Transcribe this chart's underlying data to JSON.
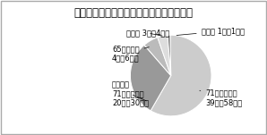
{
  "title": "図２－１　適切と考える再診料の統一方法",
  "slices": [
    {
      "label": "71点に揃える\n39人（58％）",
      "value": 58,
      "color": "#cccccc"
    },
    {
      "label": "段階的に\n71点に揃える\n20人（30％）",
      "value": 30,
      "color": "#999999"
    },
    {
      "label": "65点にする\n4人（6％）",
      "value": 6,
      "color": "#bbbbbb"
    },
    {
      "label": "その他 3人（4％）",
      "value": 4,
      "color": "#dddddd"
    },
    {
      "label": "無回答 1人（1％）",
      "value": 1,
      "color": "#777777"
    }
  ],
  "background_color": "#ffffff",
  "title_fontsize": 8.5,
  "label_fontsize": 6.0
}
